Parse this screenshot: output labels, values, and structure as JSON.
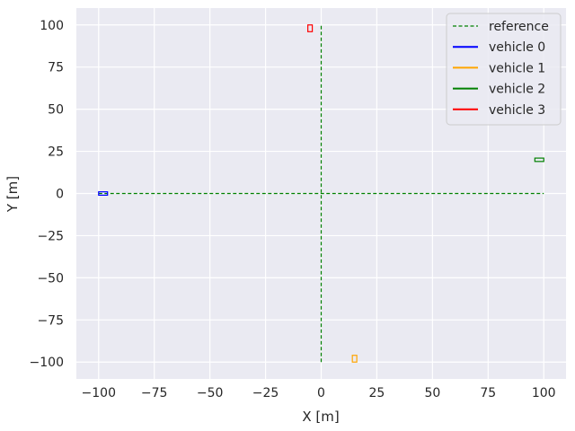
{
  "chart_data": {
    "type": "line",
    "xlabel": "X [m]",
    "ylabel": "Y [m]",
    "xlim": [
      -110,
      110
    ],
    "ylim": [
      -110,
      110
    ],
    "xticks": [
      -100,
      -75,
      -50,
      -25,
      0,
      25,
      50,
      75,
      100
    ],
    "yticks": [
      100,
      75,
      50,
      25,
      0,
      -25,
      -50,
      -75,
      -100
    ],
    "xtick_labels": [
      "−100",
      "−75",
      "−50",
      "−25",
      "0",
      "25",
      "50",
      "75",
      "100"
    ],
    "ytick_labels": [
      "100",
      "75",
      "50",
      "25",
      "0",
      "−25",
      "−50",
      "−75",
      "−100"
    ],
    "grid": true,
    "legend_position": "top-right",
    "series": [
      {
        "name": "reference",
        "color": "#008000",
        "style": "dashed",
        "segments": [
          [
            [
              -100,
              0
            ],
            [
              100,
              0
            ]
          ],
          [
            [
              0,
              -100
            ],
            [
              0,
              100
            ]
          ]
        ]
      },
      {
        "name": "vehicle 0",
        "color": "#0000ff",
        "style": "solid",
        "box": {
          "cx": -98,
          "cy": 0,
          "w": 4,
          "h": 2
        }
      },
      {
        "name": "vehicle 1",
        "color": "#ffa500",
        "style": "solid",
        "box": {
          "cx": 15,
          "cy": -98,
          "w": 2,
          "h": 4
        }
      },
      {
        "name": "vehicle 2",
        "color": "#008000",
        "style": "solid",
        "box": {
          "cx": 98,
          "cy": 20,
          "w": 4,
          "h": 2
        }
      },
      {
        "name": "vehicle 3",
        "color": "#ff0000",
        "style": "solid",
        "box": {
          "cx": -5,
          "cy": 98,
          "w": 2,
          "h": 4
        }
      }
    ]
  }
}
